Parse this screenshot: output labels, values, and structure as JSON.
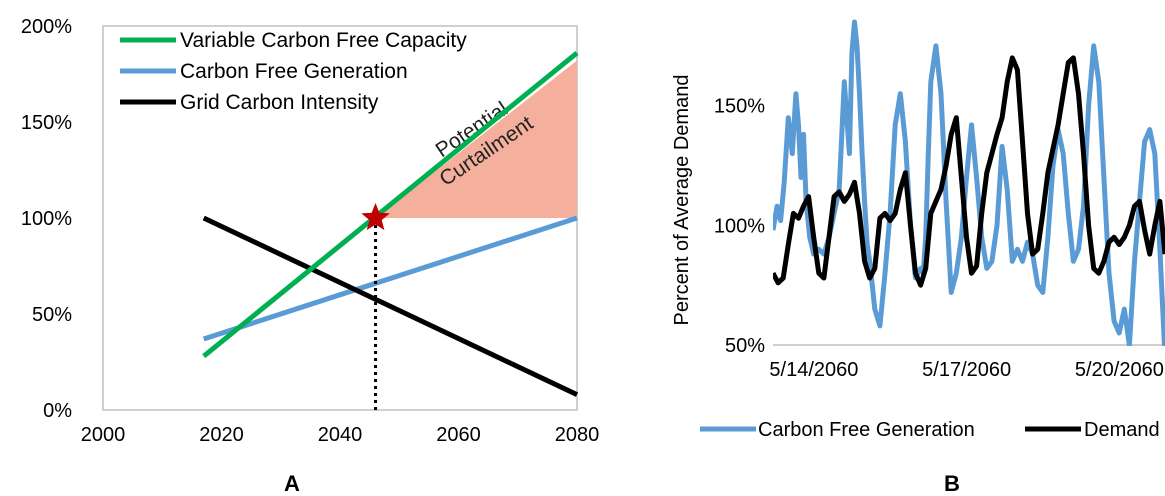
{
  "chart_data": [
    {
      "type": "line",
      "panel_label": "A",
      "xlim": [
        2000,
        2080
      ],
      "ylim": [
        0,
        2
      ],
      "x_ticks": [
        "2000",
        "2020",
        "2040",
        "2060",
        "2080"
      ],
      "y_ticks": [
        "0%",
        "50%",
        "100%",
        "150%",
        "200%"
      ],
      "series": [
        {
          "name": "Variable Carbon Free Capacity",
          "color": "#00b050",
          "x": [
            2017,
            2080
          ],
          "y": [
            0.28,
            1.86
          ]
        },
        {
          "name": "Carbon Free Generation",
          "color": "#5b9bd5",
          "x": [
            2017,
            2080
          ],
          "y": [
            0.37,
            1.0
          ]
        },
        {
          "name": "Grid Carbon Intensity",
          "color": "#000000",
          "x": [
            2017,
            2080
          ],
          "y": [
            1.0,
            0.08
          ]
        }
      ],
      "shaded_region": {
        "label_line1": "Potential",
        "label_line2": "Curtailment",
        "color": "#f4b09c",
        "x": [
          2046,
          2080
        ],
        "y_bottom": 1.0,
        "y_top_start": 1.0,
        "y_top_end": 1.82
      },
      "marker": {
        "x": 2046,
        "y": 1.0,
        "color": "#c00000",
        "shape": "star"
      },
      "dotted_line": {
        "x": 2046,
        "y_from": 0,
        "y_to": 1.0
      },
      "grid": false,
      "legend_position": "top-left"
    },
    {
      "type": "line",
      "panel_label": "B",
      "ylabel": "Percent of Average Demand",
      "ylim": [
        0.5,
        1.9
      ],
      "y_ticks": [
        "50%",
        "100%",
        "150%"
      ],
      "x_ticks": [
        "5/14/2060",
        "5/17/2060",
        "5/20/2060"
      ],
      "xlim": [
        0,
        7.7
      ],
      "series": [
        {
          "name": "Carbon Free Generation",
          "color": "#5b9bd5",
          "x": [
            0,
            0.08,
            0.15,
            0.22,
            0.3,
            0.38,
            0.45,
            0.5,
            0.55,
            0.6,
            0.65,
            0.72,
            0.8,
            0.9,
            1.0,
            1.1,
            1.2,
            1.3,
            1.4,
            1.5,
            1.55,
            1.6,
            1.65,
            1.7,
            1.75,
            1.8,
            1.85,
            1.9,
            2.0,
            2.1,
            2.2,
            2.3,
            2.4,
            2.5,
            2.6,
            2.7,
            2.8,
            2.9,
            2.95,
            3.0,
            3.05,
            3.1,
            3.2,
            3.3,
            3.4,
            3.5,
            3.6,
            3.7,
            3.8,
            3.9,
            4.0,
            4.1,
            4.2,
            4.3,
            4.4,
            4.5,
            4.6,
            4.7,
            4.8,
            4.9,
            5.0,
            5.1,
            5.2,
            5.3,
            5.4,
            5.5,
            5.6,
            5.7,
            5.8,
            5.9,
            6.0,
            6.1,
            6.2,
            6.3,
            6.4,
            6.5,
            6.6,
            6.7,
            6.8,
            6.9,
            7.0,
            7.1,
            7.2,
            7.3,
            7.4,
            7.5,
            7.6,
            7.7
          ],
          "y": [
            0.98,
            1.08,
            1.02,
            1.18,
            1.45,
            1.3,
            1.55,
            1.42,
            1.2,
            1.38,
            1.1,
            0.95,
            0.88,
            0.9,
            0.88,
            0.95,
            1.05,
            1.15,
            1.6,
            1.3,
            1.72,
            1.85,
            1.75,
            1.55,
            1.3,
            1.1,
            0.92,
            0.85,
            0.65,
            0.58,
            0.8,
            1.05,
            1.42,
            1.55,
            1.35,
            1.0,
            0.78,
            0.82,
            0.8,
            0.95,
            1.3,
            1.6,
            1.75,
            1.55,
            1.1,
            0.72,
            0.8,
            0.95,
            1.2,
            1.42,
            1.2,
            0.95,
            0.82,
            0.85,
            1.0,
            1.33,
            1.15,
            0.85,
            0.9,
            0.85,
            0.93,
            0.88,
            0.75,
            0.72,
            0.95,
            1.25,
            1.4,
            1.3,
            1.05,
            0.85,
            0.9,
            1.08,
            1.5,
            1.75,
            1.6,
            1.2,
            0.8,
            0.6,
            0.55,
            0.65,
            0.5,
            0.85,
            1.1,
            1.35,
            1.4,
            1.3,
            0.9,
            0.45
          ]
        },
        {
          "name": "Demand",
          "color": "#000000",
          "x": [
            0,
            0.1,
            0.2,
            0.3,
            0.4,
            0.5,
            0.6,
            0.7,
            0.8,
            0.9,
            1.0,
            1.1,
            1.2,
            1.3,
            1.4,
            1.5,
            1.6,
            1.7,
            1.8,
            1.9,
            2.0,
            2.1,
            2.2,
            2.3,
            2.4,
            2.5,
            2.6,
            2.7,
            2.8,
            2.9,
            3.0,
            3.1,
            3.2,
            3.3,
            3.4,
            3.5,
            3.6,
            3.7,
            3.8,
            3.9,
            4.0,
            4.1,
            4.2,
            4.3,
            4.4,
            4.5,
            4.6,
            4.7,
            4.8,
            4.9,
            5.0,
            5.1,
            5.2,
            5.3,
            5.4,
            5.5,
            5.6,
            5.7,
            5.8,
            5.9,
            6.0,
            6.1,
            6.2,
            6.3,
            6.4,
            6.5,
            6.6,
            6.7,
            6.8,
            6.9,
            7.0,
            7.1,
            7.2,
            7.3,
            7.4,
            7.5,
            7.6,
            7.7
          ],
          "y": [
            0.8,
            0.76,
            0.78,
            0.92,
            1.05,
            1.03,
            1.08,
            1.12,
            0.95,
            0.8,
            0.78,
            0.95,
            1.12,
            1.14,
            1.1,
            1.13,
            1.18,
            1.05,
            0.85,
            0.78,
            0.82,
            1.03,
            1.05,
            1.02,
            1.05,
            1.15,
            1.22,
            1.0,
            0.8,
            0.75,
            0.82,
            1.05,
            1.1,
            1.15,
            1.25,
            1.38,
            1.45,
            1.2,
            0.95,
            0.8,
            0.83,
            1.05,
            1.22,
            1.3,
            1.38,
            1.45,
            1.6,
            1.7,
            1.65,
            1.35,
            1.05,
            0.88,
            0.9,
            1.05,
            1.22,
            1.32,
            1.42,
            1.55,
            1.68,
            1.7,
            1.55,
            1.3,
            1.0,
            0.82,
            0.8,
            0.85,
            0.93,
            0.95,
            0.92,
            0.95,
            1.0,
            1.08,
            1.1,
            0.98,
            0.88,
            1.0,
            1.1,
            0.88
          ]
        }
      ],
      "grid": false,
      "legend_position": "bottom"
    }
  ]
}
